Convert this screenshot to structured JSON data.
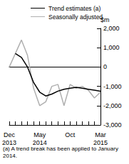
{
  "chart_data": {
    "type": "line",
    "y_label": "$m",
    "footnote": "(a) A trend break has been applied to January 2014.",
    "categories": [
      "Dec\n2013",
      null,
      null,
      null,
      null,
      "May\n2014",
      null,
      null,
      null,
      null,
      "Oct",
      null,
      null,
      null,
      null,
      "Mar\n2015"
    ],
    "series": [
      {
        "name": "Trend estimates (a)",
        "color": "#000000",
        "values": [
          null,
          700,
          500,
          0,
          -800,
          -1300,
          -1500,
          -1400,
          -1250,
          -1150,
          -1100,
          -1050,
          -1100,
          -1150,
          -1200,
          -1250
        ]
      },
      {
        "name": "Seasonally adjusted",
        "color": "#b0b0b0",
        "values": [
          0,
          700,
          1400,
          600,
          -1100,
          -2000,
          -1800,
          -1000,
          -900,
          -2000,
          -900,
          -1100,
          -1000,
          -1200,
          -1600,
          -1300
        ]
      }
    ],
    "ylim": [
      -3000,
      2000
    ],
    "yticks": [
      -3000,
      -2000,
      -1000,
      0,
      1000,
      2000
    ],
    "legend": "top",
    "grid": false
  }
}
